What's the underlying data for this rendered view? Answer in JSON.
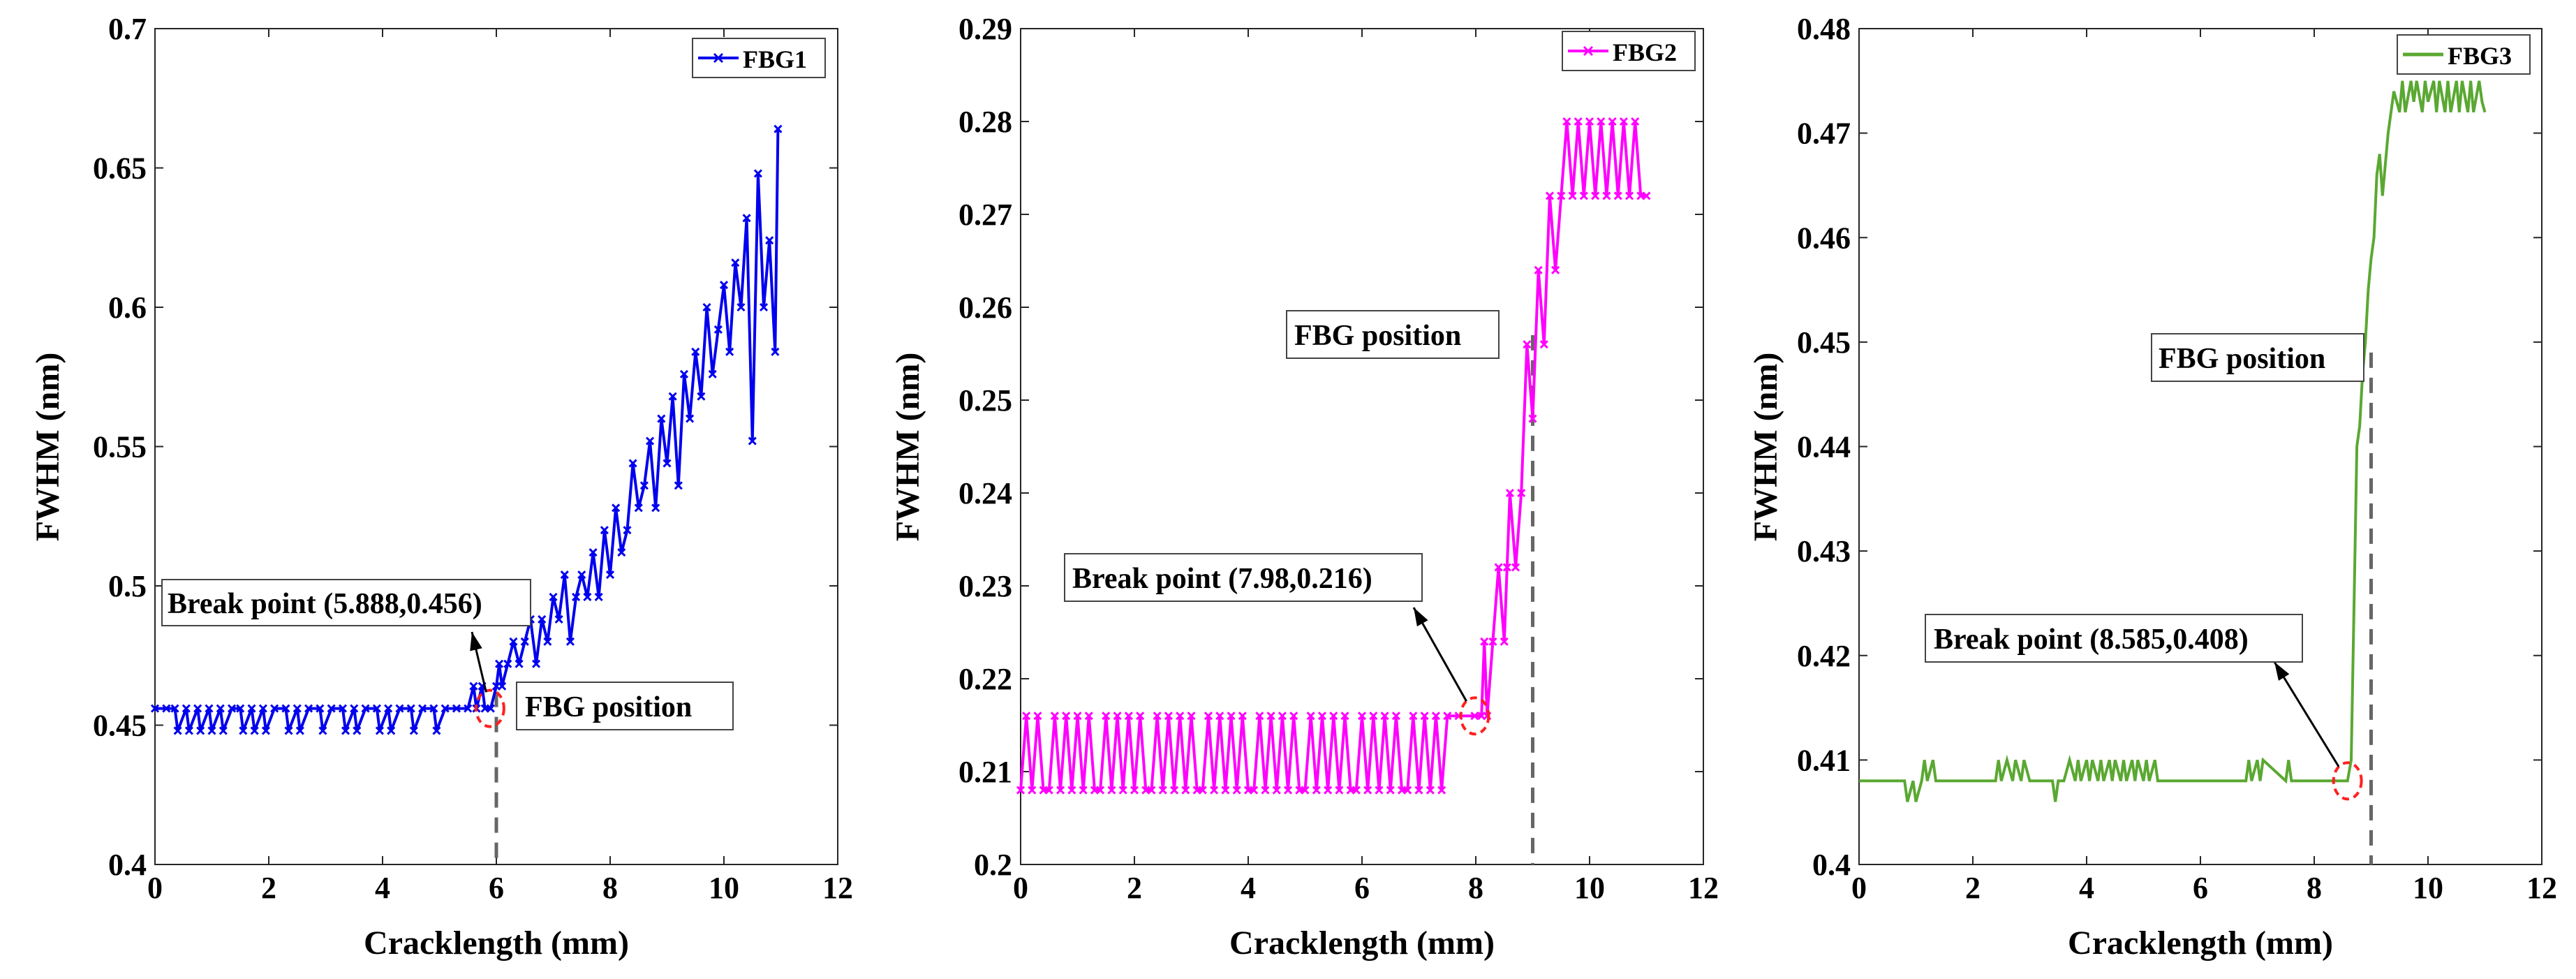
{
  "chart_data": [
    {
      "type": "line",
      "title": "",
      "xlabel": "Cracklength (mm)",
      "ylabel": "FWHM (nm)",
      "xlim": [
        0,
        12
      ],
      "ylim": [
        0.4,
        0.7
      ],
      "xticks": [
        "0",
        "2",
        "4",
        "6",
        "8",
        "10",
        "12"
      ],
      "yticks": [
        "0.4",
        "0.45",
        "0.5",
        "0.55",
        "0.6",
        "0.65",
        "0.7"
      ],
      "grid": false,
      "legend_position": "top-right",
      "series": [
        {
          "name": "FBG1",
          "color": "#0000ee",
          "marker": "x",
          "x": [
            0,
            0.2,
            0.35,
            0.4,
            0.55,
            0.6,
            0.75,
            0.8,
            0.95,
            1.0,
            1.15,
            1.2,
            1.35,
            1.5,
            1.55,
            1.7,
            1.75,
            1.9,
            1.95,
            2.1,
            2.3,
            2.35,
            2.5,
            2.55,
            2.7,
            2.9,
            2.95,
            3.1,
            3.3,
            3.35,
            3.5,
            3.55,
            3.7,
            3.9,
            3.95,
            4.1,
            4.15,
            4.3,
            4.5,
            4.55,
            4.7,
            4.9,
            4.95,
            5.1,
            5.3,
            5.5,
            5.6,
            5.65,
            5.75,
            5.8,
            5.9,
            6.0,
            6.05,
            6.1,
            6.2,
            6.3,
            6.4,
            6.5,
            6.6,
            6.7,
            6.8,
            6.9,
            7.0,
            7.1,
            7.2,
            7.3,
            7.4,
            7.5,
            7.6,
            7.7,
            7.8,
            7.9,
            8.0,
            8.1,
            8.2,
            8.3,
            8.4,
            8.5,
            8.6,
            8.7,
            8.8,
            8.9,
            9.0,
            9.1,
            9.2,
            9.3,
            9.4,
            9.5,
            9.6,
            9.7,
            9.8,
            9.9,
            10.0,
            10.1,
            10.2,
            10.3,
            10.4,
            10.5,
            10.6,
            10.7,
            10.8,
            10.9,
            10.95
          ],
          "y": [
            0.456,
            0.456,
            0.456,
            0.448,
            0.456,
            0.448,
            0.456,
            0.448,
            0.456,
            0.448,
            0.456,
            0.448,
            0.456,
            0.456,
            0.448,
            0.456,
            0.448,
            0.456,
            0.448,
            0.456,
            0.456,
            0.448,
            0.456,
            0.448,
            0.456,
            0.456,
            0.448,
            0.456,
            0.456,
            0.448,
            0.456,
            0.448,
            0.456,
            0.456,
            0.448,
            0.456,
            0.448,
            0.456,
            0.456,
            0.448,
            0.456,
            0.456,
            0.448,
            0.456,
            0.456,
            0.456,
            0.464,
            0.456,
            0.464,
            0.456,
            0.456,
            0.464,
            0.472,
            0.464,
            0.472,
            0.48,
            0.472,
            0.48,
            0.488,
            0.472,
            0.488,
            0.48,
            0.496,
            0.488,
            0.504,
            0.48,
            0.496,
            0.504,
            0.496,
            0.512,
            0.496,
            0.52,
            0.504,
            0.528,
            0.512,
            0.52,
            0.544,
            0.528,
            0.536,
            0.552,
            0.528,
            0.56,
            0.544,
            0.568,
            0.536,
            0.576,
            0.56,
            0.584,
            0.568,
            0.6,
            0.576,
            0.592,
            0.608,
            0.584,
            0.616,
            0.6,
            0.632,
            0.552,
            0.648,
            0.6,
            0.624,
            0.584,
            0.664
          ]
        }
      ],
      "annotations": [
        {
          "text": "Break point (5.888,0.456)",
          "point": [
            5.888,
            0.456
          ]
        },
        {
          "text": "FBG position",
          "vline_x": 6.0
        }
      ]
    },
    {
      "type": "line",
      "title": "",
      "xlabel": "Cracklength (mm)",
      "ylabel": "FWHM (nm)",
      "xlim": [
        0,
        12
      ],
      "ylim": [
        0.2,
        0.29
      ],
      "xticks": [
        "0",
        "2",
        "4",
        "6",
        "8",
        "10",
        "12"
      ],
      "yticks": [
        "0.2",
        "0.21",
        "0.22",
        "0.23",
        "0.24",
        "0.25",
        "0.26",
        "0.27",
        "0.28",
        "0.29"
      ],
      "grid": false,
      "legend_position": "top-right",
      "series": [
        {
          "name": "FBG2",
          "color": "#ff00ff",
          "marker": "x",
          "x": [
            0,
            0.1,
            0.2,
            0.3,
            0.4,
            0.5,
            0.6,
            0.7,
            0.8,
            0.9,
            1.0,
            1.1,
            1.2,
            1.3,
            1.4,
            1.5,
            1.6,
            1.7,
            1.8,
            1.9,
            2.0,
            2.1,
            2.2,
            2.3,
            2.4,
            2.5,
            2.6,
            2.7,
            2.8,
            2.9,
            3.0,
            3.1,
            3.2,
            3.3,
            3.4,
            3.5,
            3.6,
            3.7,
            3.8,
            3.9,
            4.0,
            4.1,
            4.2,
            4.3,
            4.4,
            4.5,
            4.6,
            4.7,
            4.8,
            4.9,
            5.0,
            5.1,
            5.2,
            5.3,
            5.4,
            5.5,
            5.6,
            5.7,
            5.8,
            5.9,
            6.0,
            6.1,
            6.2,
            6.3,
            6.4,
            6.5,
            6.6,
            6.7,
            6.8,
            6.9,
            7.0,
            7.1,
            7.2,
            7.3,
            7.4,
            7.5,
            7.7,
            7.98,
            8.1,
            8.15,
            8.2,
            8.3,
            8.4,
            8.5,
            8.55,
            8.6,
            8.7,
            8.8,
            8.9,
            9.0,
            9.1,
            9.2,
            9.3,
            9.4,
            9.5,
            9.6,
            9.7,
            9.8,
            9.9,
            10.0,
            10.1,
            10.2,
            10.3,
            10.4,
            10.5,
            10.6,
            10.7,
            10.8,
            10.9,
            11.0
          ],
          "y": [
            0.208,
            0.216,
            0.208,
            0.216,
            0.208,
            0.208,
            0.216,
            0.208,
            0.216,
            0.208,
            0.216,
            0.208,
            0.216,
            0.208,
            0.208,
            0.216,
            0.208,
            0.216,
            0.208,
            0.216,
            0.208,
            0.216,
            0.208,
            0.208,
            0.216,
            0.208,
            0.216,
            0.208,
            0.216,
            0.208,
            0.216,
            0.208,
            0.208,
            0.216,
            0.208,
            0.216,
            0.208,
            0.216,
            0.208,
            0.216,
            0.208,
            0.208,
            0.216,
            0.208,
            0.216,
            0.208,
            0.216,
            0.208,
            0.216,
            0.208,
            0.208,
            0.216,
            0.208,
            0.216,
            0.208,
            0.216,
            0.208,
            0.216,
            0.208,
            0.208,
            0.216,
            0.208,
            0.216,
            0.208,
            0.216,
            0.208,
            0.216,
            0.208,
            0.208,
            0.216,
            0.208,
            0.216,
            0.208,
            0.216,
            0.208,
            0.216,
            0.216,
            0.216,
            0.216,
            0.224,
            0.216,
            0.224,
            0.232,
            0.224,
            0.232,
            0.24,
            0.232,
            0.24,
            0.256,
            0.248,
            0.264,
            0.256,
            0.272,
            0.264,
            0.272,
            0.28,
            0.272,
            0.28,
            0.272,
            0.28,
            0.272,
            0.28,
            0.272,
            0.28,
            0.272,
            0.28,
            0.272,
            0.28,
            0.272,
            0.272
          ]
        }
      ],
      "annotations": [
        {
          "text": "Break point (7.98,0.216)",
          "point": [
            7.98,
            0.216
          ]
        },
        {
          "text": "FBG position",
          "vline_x": 9.0
        }
      ]
    },
    {
      "type": "line",
      "title": "",
      "xlabel": "Cracklength (mm)",
      "ylabel": "FWHM (nm)",
      "xlim": [
        0,
        12
      ],
      "ylim": [
        0.4,
        0.48
      ],
      "xticks": [
        "0",
        "2",
        "4",
        "6",
        "8",
        "10",
        "12"
      ],
      "yticks": [
        "0.4",
        "0.41",
        "0.42",
        "0.43",
        "0.44",
        "0.45",
        "0.46",
        "0.47",
        "0.48"
      ],
      "grid": false,
      "legend_position": "top-right",
      "series": [
        {
          "name": "FBG3",
          "color": "#5aa832",
          "marker": "none",
          "x": [
            0,
            0.8,
            0.85,
            0.95,
            1.0,
            1.1,
            1.15,
            1.2,
            1.3,
            1.35,
            1.4,
            2.4,
            2.45,
            2.5,
            2.6,
            2.7,
            2.75,
            2.85,
            2.9,
            3.0,
            3.05,
            3.4,
            3.45,
            3.5,
            3.6,
            3.7,
            3.8,
            3.85,
            3.9,
            4.0,
            4.05,
            4.1,
            4.2,
            4.25,
            4.3,
            4.4,
            4.45,
            4.5,
            4.6,
            4.65,
            4.7,
            4.8,
            4.85,
            4.9,
            5.0,
            5.05,
            5.1,
            5.2,
            5.25,
            6.8,
            6.85,
            6.9,
            7.0,
            7.05,
            7.1,
            7.5,
            7.55,
            7.6,
            8.585,
            8.65,
            8.7,
            8.75,
            8.8,
            8.85,
            8.9,
            8.95,
            9.0,
            9.05,
            9.1,
            9.15,
            9.2,
            9.3,
            9.35,
            9.4,
            9.5,
            9.55,
            9.6,
            9.7,
            9.75,
            9.8,
            9.9,
            9.95,
            10.0,
            10.1,
            10.15,
            10.2,
            10.3,
            10.35,
            10.4,
            10.5,
            10.55,
            10.6,
            10.7,
            10.75,
            10.8,
            10.9,
            10.95,
            11.0
          ],
          "y": [
            0.408,
            0.408,
            0.406,
            0.408,
            0.406,
            0.408,
            0.41,
            0.408,
            0.41,
            0.408,
            0.408,
            0.408,
            0.41,
            0.408,
            0.41,
            0.408,
            0.41,
            0.408,
            0.41,
            0.408,
            0.408,
            0.408,
            0.406,
            0.408,
            0.408,
            0.41,
            0.408,
            0.41,
            0.408,
            0.41,
            0.408,
            0.41,
            0.408,
            0.41,
            0.408,
            0.41,
            0.408,
            0.41,
            0.408,
            0.41,
            0.408,
            0.41,
            0.408,
            0.41,
            0.408,
            0.41,
            0.408,
            0.41,
            0.408,
            0.408,
            0.41,
            0.408,
            0.41,
            0.408,
            0.41,
            0.408,
            0.41,
            0.408,
            0.408,
            0.41,
            0.425,
            0.44,
            0.442,
            0.447,
            0.45,
            0.455,
            0.458,
            0.46,
            0.466,
            0.468,
            0.464,
            0.47,
            0.472,
            0.474,
            0.472,
            0.475,
            0.472,
            0.475,
            0.473,
            0.475,
            0.472,
            0.475,
            0.473,
            0.475,
            0.472,
            0.475,
            0.472,
            0.475,
            0.472,
            0.475,
            0.472,
            0.475,
            0.472,
            0.475,
            0.472,
            0.475,
            0.473,
            0.472
          ]
        }
      ],
      "annotations": [
        {
          "text": "Break point (8.585,0.408)",
          "point": [
            8.585,
            0.408
          ]
        },
        {
          "text": "FBG position",
          "vline_x": 9.0
        }
      ]
    }
  ]
}
